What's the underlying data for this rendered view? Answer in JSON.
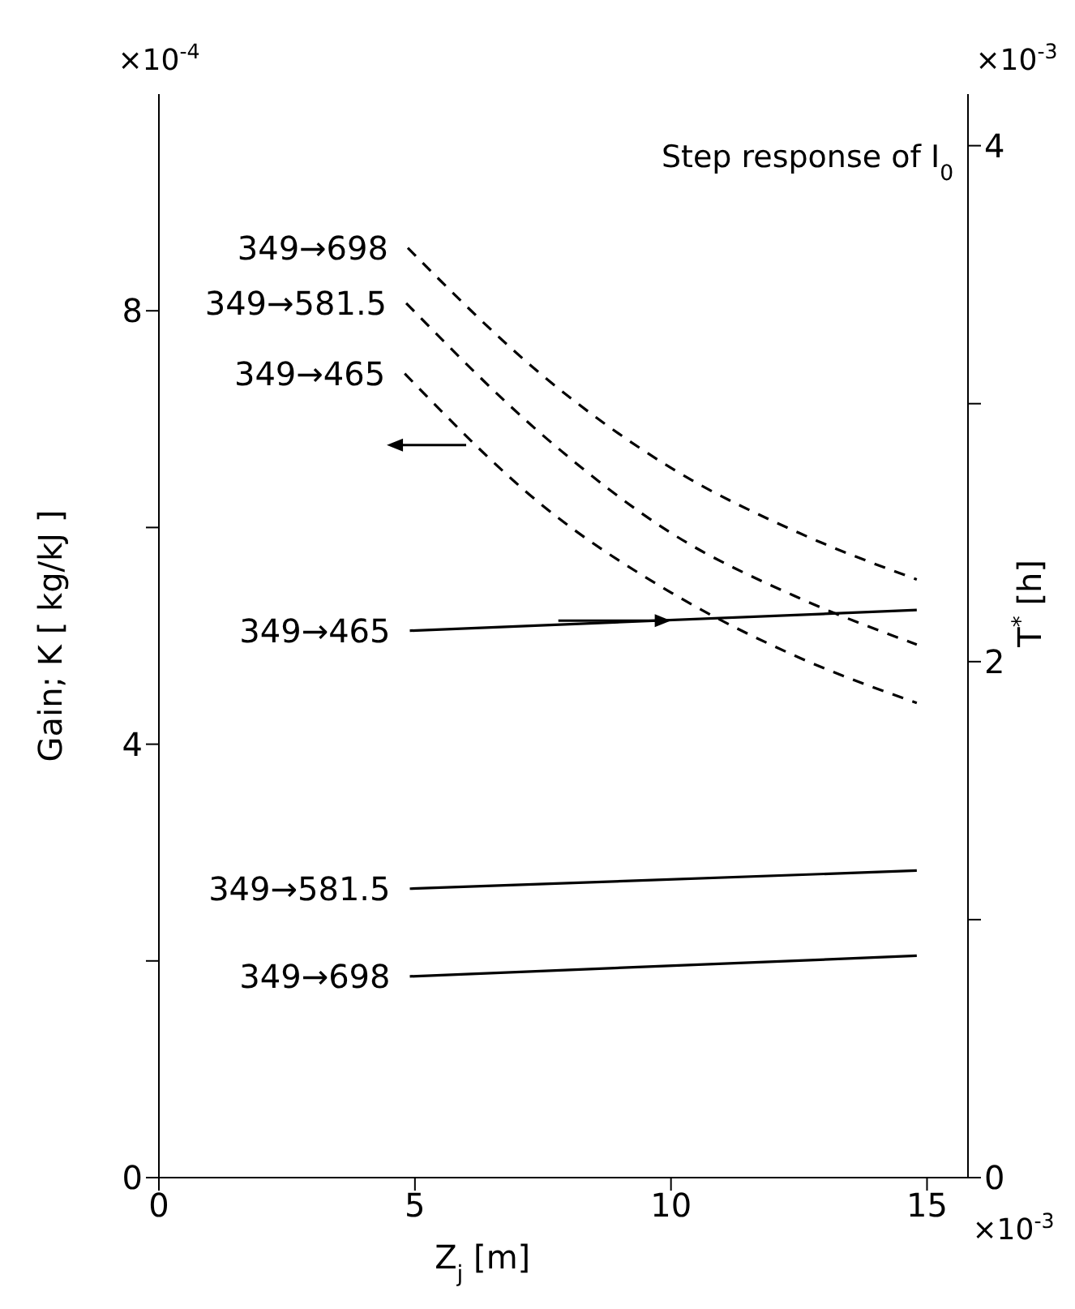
{
  "chart_data": {
    "type": "line",
    "xlabel": "Z$_{j}$   [m]",
    "ylabel": "Gain; K   [ kg/kJ ]",
    "y2label": "T$^{*}$ [h]",
    "annotations": [
      "Step response of I$_{0}$",
      "×10$^{-4}$",
      "×10$^{-3}$",
      "×10$^{-3}$"
    ],
    "xlim": [
      0,
      15.8
    ],
    "xticks": [
      0,
      5,
      10,
      15
    ],
    "ylim": [
      0,
      10
    ],
    "yticks": [
      0,
      {
        "value": 2,
        "label": null
      },
      4,
      {
        "value": 6,
        "label": null
      },
      8
    ],
    "y2lim": [
      0,
      4.2
    ],
    "y2ticks": [
      0,
      {
        "value": 1,
        "label": null
      },
      2,
      {
        "value": 3,
        "label": null
      },
      4
    ],
    "marker": "none",
    "series": [
      {
        "name": "349→698",
        "color": "#000000",
        "line_style": "dashed",
        "x": [
          4.86,
          7.5,
          10,
          12.5,
          14.8
        ],
        "values": [
          8.58,
          7.4,
          6.55,
          5.95,
          5.52
        ]
      },
      {
        "name": "349→581.5",
        "color": "#000000",
        "line_style": "dashed",
        "x": [
          4.83,
          7.5,
          10,
          12.5,
          14.8
        ],
        "values": [
          8.07,
          6.85,
          5.95,
          5.35,
          4.92
        ]
      },
      {
        "name": "349→465",
        "color": "#000000",
        "line_style": "dashed",
        "x": [
          4.8,
          7.5,
          10,
          12.5,
          14.8
        ],
        "values": [
          7.42,
          6.2,
          5.4,
          4.8,
          4.38
        ]
      },
      {
        "name": "349→465",
        "color": "#000000",
        "line_style": "solid",
        "axis": "y2",
        "x": [
          4.9,
          14.8
        ],
        "values": [
          2.12,
          2.2
        ]
      },
      {
        "name": "349→581.5",
        "color": "#000000",
        "line_style": "solid",
        "axis": "y2",
        "x": [
          4.9,
          14.8
        ],
        "values": [
          1.12,
          1.19
        ]
      },
      {
        "name": "349→698",
        "color": "#000000",
        "line_style": "solid",
        "axis": "y2",
        "x": [
          4.9,
          14.8
        ],
        "values": [
          0.78,
          0.86
        ]
      }
    ]
  }
}
